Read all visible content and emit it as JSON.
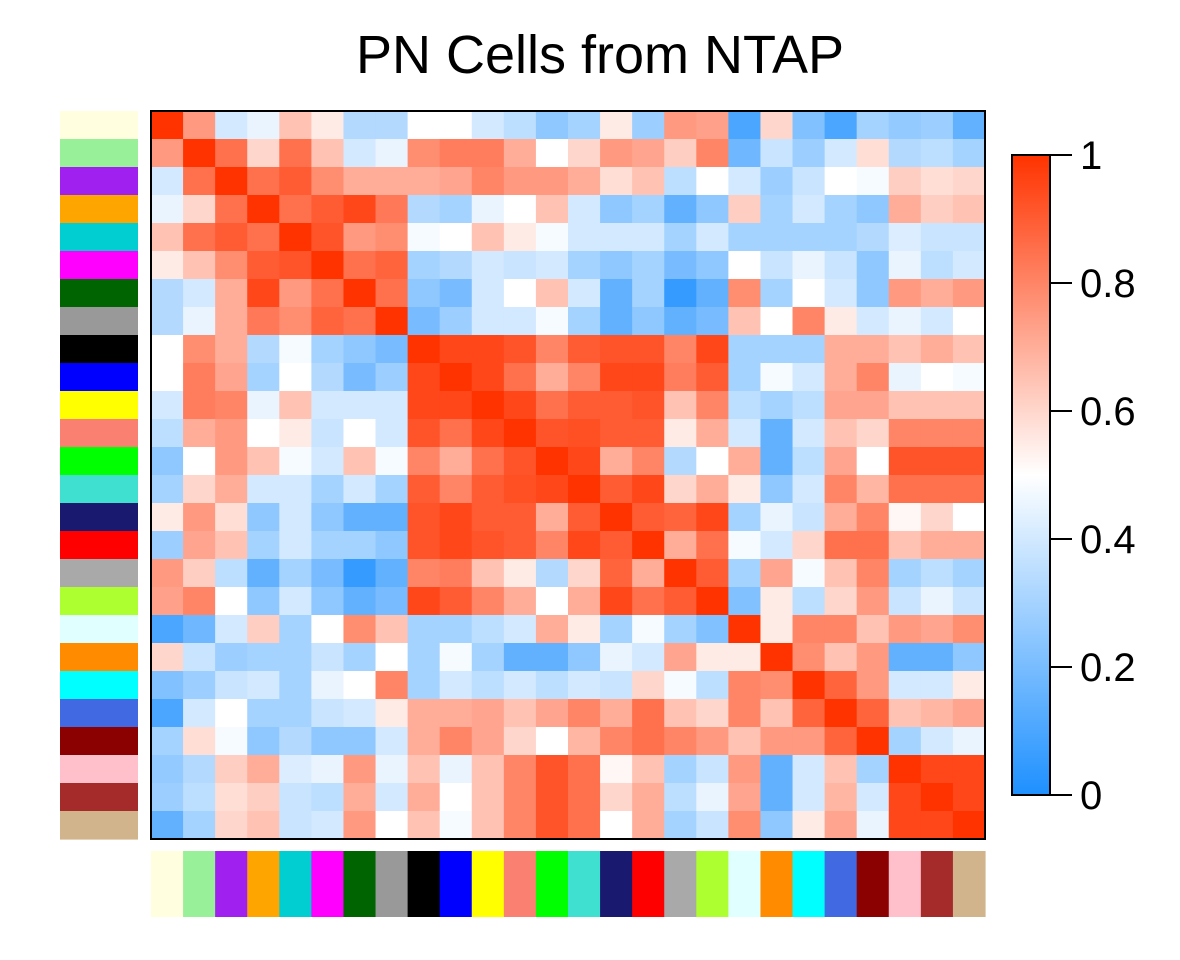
{
  "chart_data": {
    "type": "heatmap",
    "title": "PN Cells from NTAP",
    "xlabel": "",
    "ylabel": "",
    "color_scale": {
      "range": [
        0,
        1
      ],
      "low": "#1E90FF",
      "mid": "#FFFFFF",
      "high": "#FF3300",
      "ticks": [
        0,
        0.2,
        0.4,
        0.6,
        0.8,
        1
      ],
      "tick_labels": [
        "0",
        "0.2",
        "0.4",
        "0.6",
        "0.8",
        "1"
      ],
      "legend_position": "right"
    },
    "sample_colors": [
      "#FFFFE0",
      "#98F098",
      "#A020F0",
      "#FFA500",
      "#00CED1",
      "#FF00FF",
      "#006400",
      "#999999",
      "#000000",
      "#0000FF",
      "#FFFF00",
      "#FA8072",
      "#00FF00",
      "#40E0D0",
      "#191970",
      "#FF0000",
      "#A9A9A9",
      "#ADFF2F",
      "#E0FFFF",
      "#FF8C00",
      "#00FFFF",
      "#4169E1",
      "#8B0000",
      "#FFC0CB",
      "#A52A2A",
      "#D2B48C"
    ],
    "matrix": [
      [
        1.0,
        0.75,
        0.4,
        0.45,
        0.65,
        0.55,
        0.33,
        0.33,
        0.5,
        0.5,
        0.4,
        0.35,
        0.25,
        0.3,
        0.55,
        0.28,
        0.75,
        0.73,
        0.1,
        0.6,
        0.22,
        0.1,
        0.3,
        0.26,
        0.28,
        0.15
      ],
      [
        0.75,
        1.0,
        0.85,
        0.6,
        0.85,
        0.65,
        0.4,
        0.45,
        0.78,
        0.82,
        0.82,
        0.7,
        0.5,
        0.6,
        0.75,
        0.72,
        0.62,
        0.8,
        0.18,
        0.38,
        0.28,
        0.4,
        0.58,
        0.33,
        0.35,
        0.3
      ],
      [
        0.4,
        0.85,
        1.0,
        0.85,
        0.9,
        0.78,
        0.7,
        0.7,
        0.7,
        0.72,
        0.8,
        0.75,
        0.75,
        0.7,
        0.58,
        0.65,
        0.35,
        0.5,
        0.4,
        0.28,
        0.38,
        0.5,
        0.48,
        0.62,
        0.58,
        0.6
      ],
      [
        0.45,
        0.6,
        0.85,
        1.0,
        0.85,
        0.9,
        0.95,
        0.83,
        0.33,
        0.3,
        0.45,
        0.5,
        0.65,
        0.4,
        0.25,
        0.3,
        0.15,
        0.25,
        0.62,
        0.3,
        0.4,
        0.3,
        0.25,
        0.7,
        0.62,
        0.65
      ],
      [
        0.65,
        0.85,
        0.9,
        0.85,
        1.0,
        0.92,
        0.75,
        0.78,
        0.48,
        0.5,
        0.65,
        0.55,
        0.48,
        0.4,
        0.4,
        0.4,
        0.3,
        0.4,
        0.3,
        0.3,
        0.3,
        0.3,
        0.33,
        0.42,
        0.38,
        0.38
      ],
      [
        0.55,
        0.65,
        0.78,
        0.9,
        0.92,
        1.0,
        0.85,
        0.88,
        0.3,
        0.33,
        0.4,
        0.38,
        0.4,
        0.3,
        0.25,
        0.3,
        0.2,
        0.25,
        0.5,
        0.38,
        0.45,
        0.38,
        0.25,
        0.45,
        0.35,
        0.4
      ],
      [
        0.33,
        0.4,
        0.7,
        0.95,
        0.75,
        0.85,
        1.0,
        0.85,
        0.25,
        0.2,
        0.4,
        0.5,
        0.65,
        0.4,
        0.15,
        0.3,
        0.05,
        0.15,
        0.78,
        0.3,
        0.5,
        0.4,
        0.25,
        0.75,
        0.7,
        0.75
      ],
      [
        0.33,
        0.45,
        0.7,
        0.83,
        0.78,
        0.88,
        0.85,
        1.0,
        0.2,
        0.28,
        0.4,
        0.4,
        0.48,
        0.3,
        0.15,
        0.25,
        0.15,
        0.2,
        0.65,
        0.5,
        0.8,
        0.55,
        0.4,
        0.45,
        0.4,
        0.5
      ],
      [
        0.5,
        0.78,
        0.7,
        0.33,
        0.48,
        0.3,
        0.25,
        0.2,
        1.0,
        0.95,
        0.95,
        0.92,
        0.8,
        0.9,
        0.92,
        0.92,
        0.8,
        0.95,
        0.3,
        0.3,
        0.3,
        0.7,
        0.7,
        0.65,
        0.7,
        0.65
      ],
      [
        0.5,
        0.82,
        0.72,
        0.3,
        0.5,
        0.33,
        0.2,
        0.28,
        0.95,
        1.0,
        0.95,
        0.85,
        0.7,
        0.8,
        0.95,
        0.95,
        0.82,
        0.9,
        0.3,
        0.48,
        0.4,
        0.7,
        0.8,
        0.45,
        0.5,
        0.48
      ],
      [
        0.4,
        0.82,
        0.8,
        0.45,
        0.65,
        0.4,
        0.4,
        0.4,
        0.95,
        0.95,
        1.0,
        0.95,
        0.85,
        0.9,
        0.9,
        0.92,
        0.65,
        0.8,
        0.35,
        0.3,
        0.35,
        0.72,
        0.72,
        0.65,
        0.65,
        0.65
      ],
      [
        0.35,
        0.7,
        0.75,
        0.5,
        0.55,
        0.38,
        0.5,
        0.4,
        0.92,
        0.85,
        0.95,
        1.0,
        0.92,
        0.93,
        0.9,
        0.9,
        0.55,
        0.7,
        0.4,
        0.15,
        0.4,
        0.65,
        0.6,
        0.8,
        0.8,
        0.8
      ],
      [
        0.25,
        0.5,
        0.75,
        0.65,
        0.48,
        0.4,
        0.65,
        0.48,
        0.8,
        0.7,
        0.85,
        0.92,
        1.0,
        0.95,
        0.7,
        0.8,
        0.33,
        0.5,
        0.7,
        0.15,
        0.35,
        0.72,
        0.5,
        0.92,
        0.92,
        0.92
      ],
      [
        0.3,
        0.6,
        0.7,
        0.4,
        0.4,
        0.3,
        0.4,
        0.3,
        0.9,
        0.8,
        0.9,
        0.93,
        0.95,
        1.0,
        0.9,
        0.95,
        0.6,
        0.7,
        0.55,
        0.25,
        0.4,
        0.8,
        0.68,
        0.85,
        0.85,
        0.85
      ],
      [
        0.55,
        0.75,
        0.58,
        0.25,
        0.4,
        0.25,
        0.15,
        0.15,
        0.92,
        0.95,
        0.9,
        0.9,
        0.7,
        0.9,
        1.0,
        0.9,
        0.88,
        0.95,
        0.3,
        0.45,
        0.38,
        0.7,
        0.8,
        0.52,
        0.6,
        0.5
      ],
      [
        0.28,
        0.72,
        0.65,
        0.3,
        0.4,
        0.3,
        0.3,
        0.25,
        0.92,
        0.95,
        0.92,
        0.9,
        0.8,
        0.95,
        0.9,
        1.0,
        0.7,
        0.85,
        0.48,
        0.4,
        0.6,
        0.85,
        0.85,
        0.65,
        0.7,
        0.7
      ],
      [
        0.75,
        0.62,
        0.35,
        0.15,
        0.3,
        0.2,
        0.05,
        0.15,
        0.8,
        0.82,
        0.65,
        0.55,
        0.33,
        0.6,
        0.88,
        0.7,
        1.0,
        0.9,
        0.3,
        0.72,
        0.48,
        0.65,
        0.8,
        0.3,
        0.35,
        0.3
      ],
      [
        0.73,
        0.8,
        0.5,
        0.25,
        0.4,
        0.25,
        0.15,
        0.2,
        0.95,
        0.9,
        0.8,
        0.7,
        0.5,
        0.7,
        0.95,
        0.85,
        0.9,
        1.0,
        0.22,
        0.55,
        0.35,
        0.6,
        0.75,
        0.38,
        0.45,
        0.38
      ],
      [
        0.1,
        0.18,
        0.4,
        0.62,
        0.3,
        0.5,
        0.78,
        0.65,
        0.3,
        0.3,
        0.35,
        0.4,
        0.7,
        0.55,
        0.3,
        0.48,
        0.3,
        0.22,
        1.0,
        0.55,
        0.8,
        0.8,
        0.65,
        0.75,
        0.72,
        0.78
      ],
      [
        0.6,
        0.38,
        0.28,
        0.3,
        0.3,
        0.38,
        0.3,
        0.5,
        0.3,
        0.48,
        0.3,
        0.15,
        0.15,
        0.25,
        0.45,
        0.4,
        0.72,
        0.55,
        0.55,
        1.0,
        0.78,
        0.65,
        0.75,
        0.15,
        0.15,
        0.25
      ],
      [
        0.22,
        0.28,
        0.38,
        0.4,
        0.3,
        0.45,
        0.5,
        0.8,
        0.3,
        0.4,
        0.35,
        0.4,
        0.35,
        0.4,
        0.38,
        0.6,
        0.48,
        0.35,
        0.8,
        0.78,
        1.0,
        0.88,
        0.75,
        0.4,
        0.4,
        0.55
      ],
      [
        0.1,
        0.4,
        0.5,
        0.3,
        0.3,
        0.38,
        0.4,
        0.55,
        0.7,
        0.7,
        0.72,
        0.65,
        0.72,
        0.8,
        0.7,
        0.85,
        0.65,
        0.6,
        0.8,
        0.65,
        0.88,
        1.0,
        0.88,
        0.65,
        0.68,
        0.72
      ],
      [
        0.3,
        0.58,
        0.48,
        0.25,
        0.33,
        0.25,
        0.25,
        0.4,
        0.7,
        0.8,
        0.72,
        0.6,
        0.5,
        0.68,
        0.8,
        0.85,
        0.8,
        0.75,
        0.65,
        0.75,
        0.75,
        0.88,
        1.0,
        0.3,
        0.4,
        0.45
      ],
      [
        0.26,
        0.33,
        0.62,
        0.7,
        0.42,
        0.45,
        0.75,
        0.45,
        0.65,
        0.45,
        0.65,
        0.8,
        0.92,
        0.85,
        0.52,
        0.65,
        0.3,
        0.38,
        0.75,
        0.15,
        0.4,
        0.65,
        0.3,
        1.0,
        0.95,
        0.95
      ],
      [
        0.28,
        0.35,
        0.58,
        0.62,
        0.38,
        0.35,
        0.7,
        0.4,
        0.7,
        0.5,
        0.65,
        0.8,
        0.92,
        0.85,
        0.6,
        0.7,
        0.35,
        0.45,
        0.72,
        0.15,
        0.4,
        0.68,
        0.4,
        0.95,
        1.0,
        0.95
      ],
      [
        0.15,
        0.3,
        0.6,
        0.65,
        0.38,
        0.4,
        0.75,
        0.5,
        0.65,
        0.48,
        0.65,
        0.8,
        0.92,
        0.85,
        0.5,
        0.7,
        0.3,
        0.38,
        0.78,
        0.25,
        0.55,
        0.72,
        0.45,
        0.95,
        0.95,
        1.0
      ]
    ]
  }
}
